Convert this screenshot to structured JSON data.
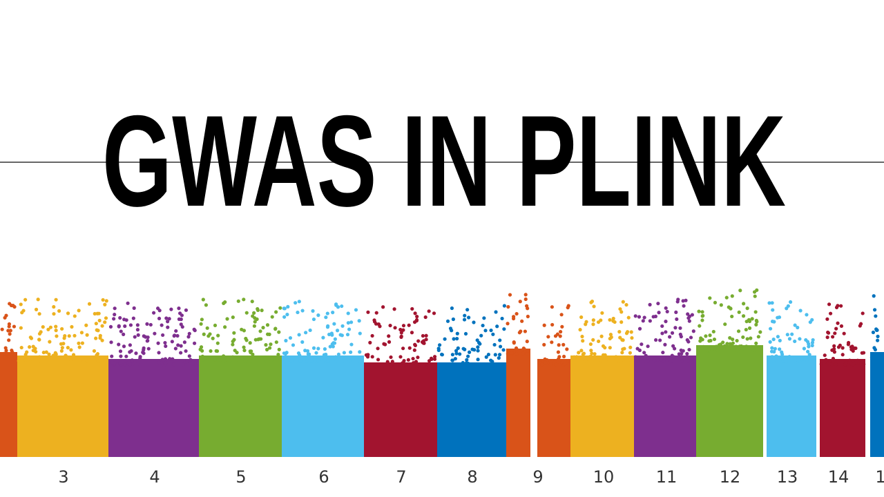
{
  "title": "GWAS IN PLINK",
  "chromosome_labels": [
    "3",
    "4",
    "5",
    "6",
    "7",
    "8",
    "9",
    "10",
    "11",
    "12",
    "13",
    "14",
    "1"
  ]
}
